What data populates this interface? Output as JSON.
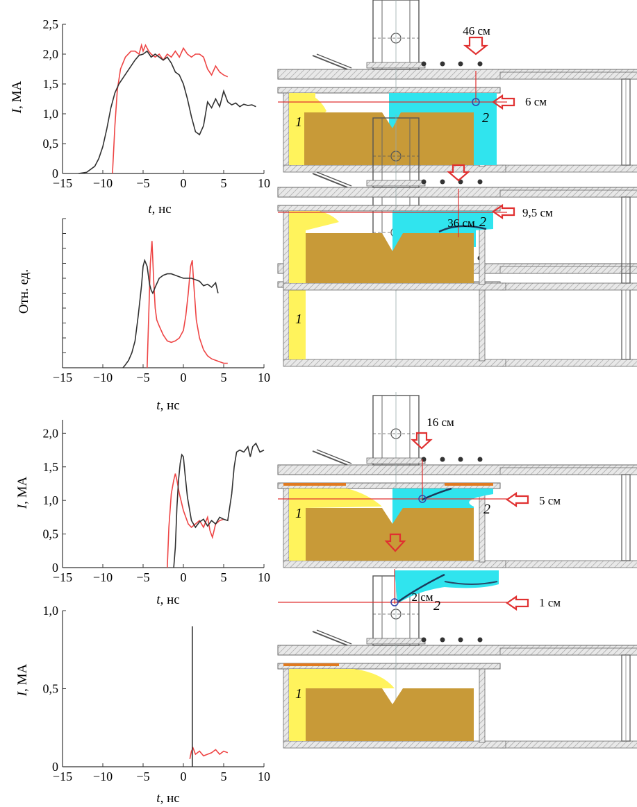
{
  "colors": {
    "simulation": "#ee4444",
    "experiment": "#303030",
    "liner": "#c89a38",
    "plasma_yellow": "#fff35c",
    "plasma_cyan": "#30e4ee",
    "arrow": "#e03030",
    "frame": "#6a6a6a"
  },
  "chart_data": [
    {
      "type": "line",
      "ylabel_italic": "I",
      "ylabel_unit": ", МА",
      "xlabel_italic": "t",
      "xlabel_unit": ", нс",
      "xlim": [
        -15,
        10
      ],
      "ylim": [
        0,
        2.5
      ],
      "xticks": [
        "−15",
        "−10",
        "−5",
        "0",
        "5",
        "10"
      ],
      "yticks": [
        {
          "v": 0,
          "t": "0"
        },
        {
          "v": 0.5,
          "t": "0,5"
        },
        {
          "v": 1.0,
          "t": "1,0"
        },
        {
          "v": 1.5,
          "t": "1,5"
        },
        {
          "v": 2.0,
          "t": "2,0"
        },
        {
          "v": 2.5,
          "t": "2,5"
        }
      ],
      "show_ytick_labels": true,
      "series": [
        {
          "color": "#ee4444",
          "x": [
            -8.8,
            -8.5,
            -8.2,
            -7.8,
            -7.2,
            -6.5,
            -6.0,
            -5.5,
            -5.2,
            -5.0,
            -4.7,
            -4.3,
            -4.0,
            -3.5,
            -3.0,
            -2.5,
            -2.0,
            -1.5,
            -1.0,
            -0.5,
            0.0,
            0.5,
            1.0,
            1.5,
            2.0,
            2.5,
            3.0,
            3.5,
            4.0,
            4.5,
            5.0,
            5.5
          ],
          "y": [
            0,
            0.8,
            1.4,
            1.75,
            1.95,
            2.05,
            2.05,
            2.0,
            2.15,
            2.05,
            2.15,
            2.05,
            2.0,
            1.95,
            2.0,
            1.9,
            2.0,
            1.95,
            2.05,
            1.95,
            2.1,
            2.0,
            1.95,
            2.0,
            2.0,
            1.95,
            1.75,
            1.65,
            1.8,
            1.7,
            1.65,
            1.62
          ]
        },
        {
          "color": "#303030",
          "x": [
            -13,
            -12,
            -11,
            -10.5,
            -10,
            -9.5,
            -9,
            -8.5,
            -8,
            -7.5,
            -7,
            -6.5,
            -6,
            -5.5,
            -5,
            -4.5,
            -4,
            -3.5,
            -3,
            -2.5,
            -2,
            -1.5,
            -1,
            -0.5,
            0,
            0.5,
            1,
            1.5,
            2,
            2.5,
            3,
            3.5,
            4,
            4.5,
            5,
            5.5,
            6,
            6.5,
            7,
            7.5,
            8,
            8.5,
            9
          ],
          "y": [
            0,
            0.02,
            0.12,
            0.25,
            0.45,
            0.75,
            1.1,
            1.35,
            1.5,
            1.6,
            1.7,
            1.8,
            1.9,
            1.98,
            2.0,
            2.05,
            1.95,
            2.0,
            1.95,
            1.9,
            1.95,
            1.85,
            1.7,
            1.65,
            1.5,
            1.25,
            0.95,
            0.7,
            0.65,
            0.8,
            1.2,
            1.1,
            1.25,
            1.12,
            1.38,
            1.2,
            1.15,
            1.18,
            1.12,
            1.16,
            1.14,
            1.15,
            1.12
          ]
        }
      ]
    },
    {
      "type": "line",
      "ylabel_italic": "",
      "ylabel_unit": "Отн. ед.",
      "xlabel_italic": "t",
      "xlabel_unit": ", нс",
      "xlim": [
        -15,
        10
      ],
      "ylim": [
        0,
        1
      ],
      "xticks": [
        "−15",
        "−10",
        "−5",
        "0",
        "5",
        "10"
      ],
      "yticks": [
        {
          "v": 0,
          "t": ""
        },
        {
          "v": 0.1,
          "t": ""
        },
        {
          "v": 0.2,
          "t": ""
        },
        {
          "v": 0.3,
          "t": ""
        },
        {
          "v": 0.4,
          "t": ""
        },
        {
          "v": 0.5,
          "t": ""
        },
        {
          "v": 0.6,
          "t": ""
        },
        {
          "v": 0.7,
          "t": ""
        },
        {
          "v": 0.8,
          "t": ""
        },
        {
          "v": 0.9,
          "t": ""
        },
        {
          "v": 1.0,
          "t": ""
        }
      ],
      "show_ytick_labels": false,
      "series": [
        {
          "color": "#ee4444",
          "x": [
            -4.5,
            -4.3,
            -4.1,
            -3.9,
            -3.7,
            -3.5,
            -3.3,
            -3.0,
            -2.5,
            -2.0,
            -1.5,
            -1.0,
            -0.5,
            0.0,
            0.3,
            0.6,
            0.9,
            1.1,
            1.3,
            1.6,
            2.0,
            2.5,
            3.0,
            3.5,
            4.0,
            4.5,
            5.0,
            5.5
          ],
          "y": [
            0,
            0.35,
            0.7,
            0.85,
            0.6,
            0.4,
            0.32,
            0.28,
            0.22,
            0.18,
            0.17,
            0.18,
            0.2,
            0.25,
            0.35,
            0.5,
            0.68,
            0.72,
            0.55,
            0.32,
            0.2,
            0.12,
            0.08,
            0.06,
            0.05,
            0.04,
            0.03,
            0.03
          ]
        },
        {
          "color": "#303030",
          "x": [
            -7.5,
            -7.2,
            -6.8,
            -6.4,
            -6,
            -5.6,
            -5.2,
            -5,
            -4.8,
            -4.5,
            -4.2,
            -4,
            -3.8,
            -3.5,
            -3,
            -2.5,
            -2,
            -1.5,
            -1,
            -0.5,
            0,
            0.5,
            1,
            1.5,
            2,
            2.5,
            3,
            3.5,
            4,
            4.3
          ],
          "y": [
            0,
            0.02,
            0.05,
            0.1,
            0.18,
            0.35,
            0.55,
            0.68,
            0.72,
            0.68,
            0.56,
            0.52,
            0.5,
            0.54,
            0.6,
            0.62,
            0.63,
            0.63,
            0.62,
            0.61,
            0.6,
            0.6,
            0.6,
            0.59,
            0.58,
            0.55,
            0.56,
            0.54,
            0.57,
            0.5
          ]
        }
      ]
    },
    {
      "type": "line",
      "ylabel_italic": "I",
      "ylabel_unit": ", МА",
      "xlabel_italic": "t",
      "xlabel_unit": ", нс",
      "xlim": [
        -15,
        10
      ],
      "ylim": [
        0,
        2.2
      ],
      "xticks": [
        "−15",
        "−10",
        "−5",
        "0",
        "5",
        "10"
      ],
      "yticks": [
        {
          "v": 0,
          "t": "0"
        },
        {
          "v": 0.5,
          "t": "0,5"
        },
        {
          "v": 1.0,
          "t": "1,0"
        },
        {
          "v": 1.5,
          "t": "1,5"
        },
        {
          "v": 2.0,
          "t": "2,0"
        }
      ],
      "show_ytick_labels": true,
      "series": [
        {
          "color": "#ee4444",
          "x": [
            -2,
            -1.8,
            -1.5,
            -1.2,
            -1,
            -0.8,
            -0.5,
            -0.2,
            0,
            0.3,
            0.6,
            1,
            1.5,
            2,
            2.5,
            3,
            3.3,
            3.6,
            4,
            4.5,
            5
          ],
          "y": [
            0,
            0.6,
            1.1,
            1.3,
            1.4,
            1.3,
            1.1,
            0.95,
            0.85,
            0.75,
            0.65,
            0.6,
            0.65,
            0.7,
            0.6,
            0.75,
            0.55,
            0.45,
            0.65,
            0.7,
            0.72
          ]
        },
        {
          "color": "#303030",
          "x": [
            -1.2,
            -1,
            -0.8,
            -0.6,
            -0.4,
            -0.2,
            0,
            0.2,
            0.5,
            1,
            1.5,
            2,
            2.5,
            3,
            3.5,
            4,
            4.5,
            5,
            5.5,
            6,
            6.3,
            6.6,
            7,
            7.5,
            8,
            8.3,
            8.6,
            9,
            9.5,
            10
          ],
          "y": [
            0,
            0.3,
            0.9,
            1.3,
            1.55,
            1.68,
            1.65,
            1.4,
            1.05,
            0.7,
            0.6,
            0.68,
            0.72,
            0.62,
            0.7,
            0.65,
            0.75,
            0.72,
            0.7,
            1.1,
            1.5,
            1.72,
            1.75,
            1.72,
            1.8,
            1.65,
            1.8,
            1.85,
            1.72,
            1.75
          ]
        }
      ]
    },
    {
      "type": "line",
      "ylabel_italic": "I",
      "ylabel_unit": ", МА",
      "xlabel_italic": "t",
      "xlabel_unit": ", нс",
      "xlim": [
        -15,
        10
      ],
      "ylim": [
        0,
        1.0
      ],
      "xticks": [
        "−15",
        "−10",
        "−5",
        "0",
        "5",
        "10"
      ],
      "yticks": [
        {
          "v": 0,
          "t": "0"
        },
        {
          "v": 0.5,
          "t": "0,5"
        },
        {
          "v": 1.0,
          "t": "1,0"
        }
      ],
      "show_ytick_labels": true,
      "series": [
        {
          "color": "#ee4444",
          "x": [
            0.8,
            1,
            1.2,
            1.5,
            2,
            2.5,
            3,
            3.5,
            4,
            4.5,
            5,
            5.5
          ],
          "y": [
            0.05,
            0.1,
            0.12,
            0.08,
            0.1,
            0.07,
            0.08,
            0.09,
            0.11,
            0.08,
            0.1,
            0.09
          ]
        },
        {
          "color": "#303030",
          "x": [
            1.1,
            1.1
          ],
          "y": [
            0.0,
            0.9
          ]
        }
      ]
    }
  ],
  "diagrams": [
    {
      "distance_label": "46 см",
      "side_label": "6 см",
      "label_1": "1",
      "label_2": "2"
    },
    {
      "distance_label": "36 см",
      "side_label": "9,5 см",
      "label_1": "1",
      "label_2": "2"
    },
    {
      "distance_label": "16 см",
      "side_label": "5 см",
      "label_1": "1",
      "label_2": "2"
    },
    {
      "distance_label": "2 см",
      "side_label": "1 см",
      "label_1": "1",
      "label_2": "2"
    }
  ]
}
